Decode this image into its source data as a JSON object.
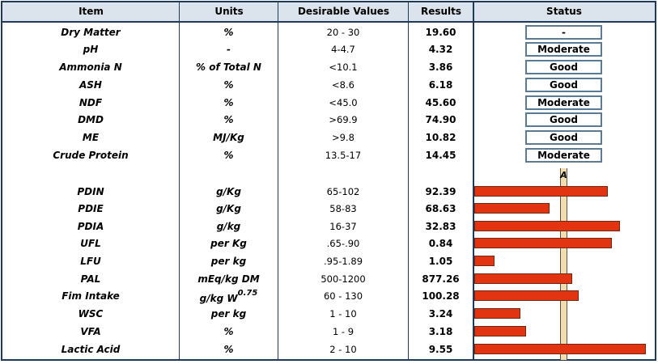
{
  "header": {
    "item": "Item",
    "units": "Units",
    "desirable": "Desirable Values",
    "results": "Results",
    "status": "Status"
  },
  "status_rows": [
    {
      "item": "Dry Matter",
      "unit": "%",
      "desirable": "20 - 30",
      "result": "19.60",
      "status": "-"
    },
    {
      "item": "pH",
      "unit": "-",
      "desirable": "4-4.7",
      "result": "4.32",
      "status": "Moderate"
    },
    {
      "item": "Ammonia N",
      "unit": "% of Total N",
      "desirable": "<10.1",
      "result": "3.86",
      "status": "Good"
    },
    {
      "item": "ASH",
      "unit": "%",
      "desirable": "<8.6",
      "result": "6.18",
      "status": "Good"
    },
    {
      "item": "NDF",
      "unit": "%",
      "desirable": "<45.0",
      "result": "45.60",
      "status": "Moderate"
    },
    {
      "item": "DMD",
      "unit": "%",
      "desirable": ">69.9",
      "result": "74.90",
      "status": "Good"
    },
    {
      "item": "ME",
      "unit": "MJ/Kg",
      "desirable": ">9.8",
      "result": "10.82",
      "status": "Good"
    },
    {
      "item": "Crude Protein",
      "unit": "%",
      "desirable": "13.5-17",
      "result": "14.45",
      "status": "Moderate"
    }
  ],
  "reference_label": "A",
  "bar_rows": [
    {
      "item": "PDIN",
      "unit": "g/Kg",
      "desirable": "65-102",
      "result": "92.39",
      "level": 0.78
    },
    {
      "item": "PDIE",
      "unit": "g/Kg",
      "desirable": "58-83",
      "result": "68.63",
      "level": 0.44
    },
    {
      "item": "PDIA",
      "unit": "g/kg",
      "desirable": "16-37",
      "result": "32.83",
      "level": 0.85
    },
    {
      "item": "UFL",
      "unit": "per Kg",
      "desirable": ".65-.90",
      "result": "0.84",
      "level": 0.8
    },
    {
      "item": "LFU",
      "unit": "per kg",
      "desirable": ".95-1.89",
      "result": "1.05",
      "level": 0.12
    },
    {
      "item": "PAL",
      "unit": "mEq/kg DM",
      "desirable": "500-1200",
      "result": "877.26",
      "level": 0.57
    },
    {
      "item": "Fim Intake",
      "unit": "g/kg W",
      "unit_sup": "0.75",
      "desirable": "60 - 130",
      "result": "100.28",
      "level": 0.61
    },
    {
      "item": "WSC",
      "unit": "per kg",
      "desirable": "1 - 10",
      "result": "3.24",
      "level": 0.27
    },
    {
      "item": "VFA",
      "unit": "%",
      "desirable": "1 - 9",
      "result": "3.18",
      "level": 0.3
    },
    {
      "item": "Lactic Acid",
      "unit": "%",
      "desirable": "2 - 10",
      "result": "9.55",
      "level": 1.0
    }
  ],
  "colors": {
    "bar": "#e33412",
    "header_bg": "#dbe4ec",
    "border": "#1f3b57",
    "reference": "#f3dcae"
  }
}
